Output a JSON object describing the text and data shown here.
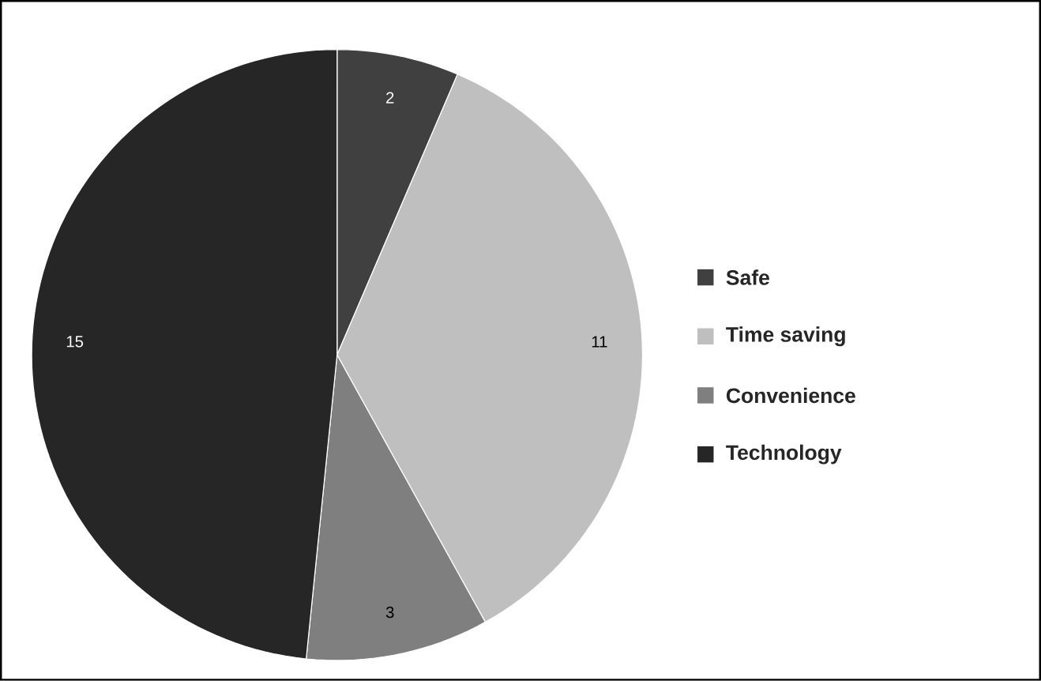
{
  "chart_data": {
    "type": "pie",
    "categories": [
      "Safe",
      "Time saving",
      "Convenience",
      "Technology"
    ],
    "values": [
      2,
      11,
      3,
      15
    ],
    "colors": [
      "#404040",
      "#bfbfbf",
      "#7f7f7f",
      "#262626"
    ],
    "data_labels": true,
    "legend": "right"
  }
}
